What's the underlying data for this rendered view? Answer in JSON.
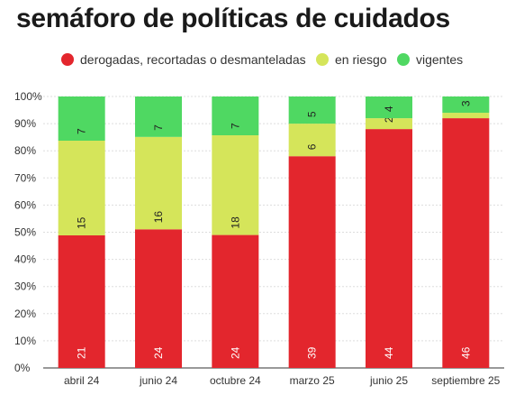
{
  "title": "semáforo de políticas de cuidados",
  "chart_data": {
    "type": "bar",
    "stacked": true,
    "normalized": true,
    "title": "semáforo de políticas de cuidados",
    "categories": [
      "abril 24",
      "junio 24",
      "octubre 24",
      "marzo 25",
      "junio 25",
      "septiembre 25"
    ],
    "series": [
      {
        "name": "derogadas, recortadas o desmanteladas",
        "color": "#e3262d",
        "values": [
          21,
          24,
          24,
          39,
          44,
          46
        ]
      },
      {
        "name": "en riesgo",
        "color": "#d5e55a",
        "values": [
          15,
          16,
          18,
          6,
          2,
          1
        ]
      },
      {
        "name": "vigentes",
        "color": "#4fd862",
        "values": [
          7,
          7,
          7,
          5,
          4,
          3
        ]
      }
    ],
    "y_ticks": [
      "0%",
      "10%",
      "20%",
      "30%",
      "40%",
      "50%",
      "60%",
      "70%",
      "80%",
      "90%",
      "100%"
    ],
    "ylim": [
      0,
      100
    ],
    "grid": true,
    "legend_position": "top"
  }
}
